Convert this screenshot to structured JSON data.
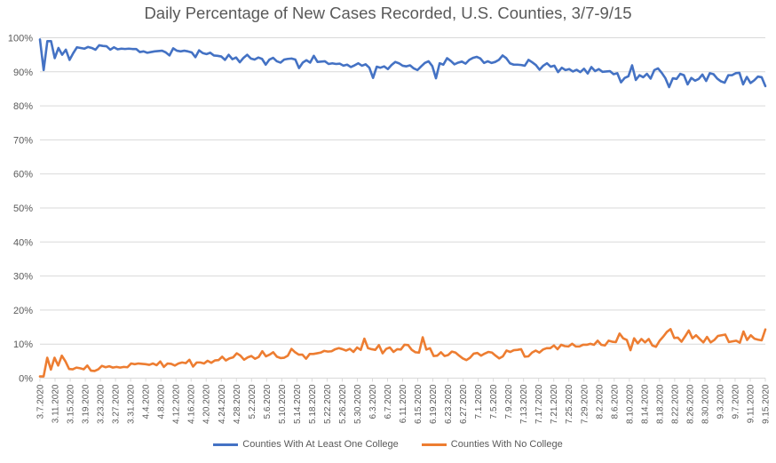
{
  "chart_data": {
    "type": "line",
    "title": "Daily Percentage of New Cases Recorded, U.S. Counties, 3/7-9/15",
    "xlabel": "",
    "ylabel": "",
    "ylim": [
      0,
      100
    ],
    "y_ticks": [
      "0%",
      "10%",
      "20%",
      "30%",
      "40%",
      "50%",
      "60%",
      "70%",
      "80%",
      "90%",
      "100%"
    ],
    "grid": "horizontal",
    "legend_position": "bottom",
    "x_tick_labels": [
      "3.7.2020",
      "3.11.2020",
      "3.15.2020",
      "3.19.2020",
      "3.23.2020",
      "3.27.2020",
      "3.31.2020",
      "4.4.2020",
      "4.8.2020",
      "4.12.2020",
      "4.16.2020",
      "4.20.2020",
      "4.24.2020",
      "4.28.2020",
      "5.2.2020",
      "5.6.2020",
      "5.10.2020",
      "5.14.2020",
      "5.18.2020",
      "5.22.2020",
      "5.26.2020",
      "5.30.2020",
      "6.3.2020",
      "6.7.2020",
      "6.11.2020",
      "6.15.2020",
      "6.19.2020",
      "6.23.2020",
      "6.27.2020",
      "7.1.2020",
      "7.5.2020",
      "7.9.2020",
      "7.13.2020",
      "7.17.2020",
      "7.21.2020",
      "7.25.2020",
      "7.29.2020",
      "8.2.2020",
      "8.6.2020",
      "8.10.2020",
      "8.14.2020",
      "8.18.2020",
      "8.22.2020",
      "8.26.2020",
      "8.30.2020",
      "9.3.2020",
      "9.7.2020",
      "9.11.2020",
      "9.15.2020"
    ],
    "x_start": "3.7.2020",
    "x_end": "9.15.2020",
    "series": [
      {
        "name": "Counties With At Least One College",
        "color": "#4472C4",
        "values": [
          99.5,
          90.5,
          99,
          99,
          94,
          97,
          95,
          96.5,
          93.5,
          95.5,
          97.2,
          97,
          96.8,
          97.3,
          97,
          96.5,
          97.8,
          97.6,
          97.5,
          96.5,
          97.2,
          96.6,
          96.8,
          96.7,
          96.8,
          96.7,
          96.7,
          95.8,
          96,
          95.6,
          95.8,
          96,
          96.1,
          96.2,
          95.7,
          94.8,
          96.9,
          96.2,
          96,
          96.2,
          96,
          95.7,
          94.3,
          96.3,
          95.5,
          95.2,
          95.6,
          94.8,
          94.7,
          94.5,
          93.5,
          95,
          93.7,
          94.2,
          92.8,
          94.1,
          95,
          93.9,
          93.6,
          94.2,
          93.8,
          92.1,
          93.6,
          94.1,
          93.1,
          92.7,
          93.6,
          93.8,
          93.9,
          93.6,
          91.1,
          92.7,
          93.4,
          92.7,
          94.7,
          92.9,
          93,
          93.1,
          92.3,
          92.5,
          92.3,
          92.4,
          91.8,
          92.1,
          91.4,
          91.9,
          92.5,
          91.8,
          92.2,
          91.2,
          88.2,
          91.5,
          91.2,
          91.6,
          90.8,
          92,
          92.9,
          92.5,
          91.8,
          91.6,
          91.9,
          91,
          90.5,
          91.6,
          92.6,
          93.1,
          91.7,
          88.1,
          92.5,
          92.1,
          94,
          93.2,
          92.2,
          92.7,
          93,
          92.4,
          93.5,
          94.1,
          94.4,
          93.9,
          92.6,
          93.1,
          92.6,
          92.9,
          93.5,
          94.8,
          94,
          92.5,
          92.1,
          92.1,
          92,
          91.8,
          93.5,
          92.8,
          92,
          90.6,
          91.8,
          92.5,
          91.5,
          91.8,
          89.9,
          91.2,
          90.5,
          90.8,
          90.1,
          90.6,
          89.9,
          90.9,
          89.5,
          91.4,
          90.2,
          90.8,
          90,
          90.1,
          90.2,
          89.3,
          89.6,
          86.9,
          88.2,
          88.7,
          91.9,
          87.6,
          89,
          88.4,
          89.4,
          88,
          90.5,
          91,
          89.7,
          88.1,
          85.5,
          88.1,
          87.9,
          89.4,
          89,
          86.3,
          88.2,
          87.4,
          87.9,
          89.2,
          87.3,
          89.6,
          89.3,
          88,
          87.2,
          86.8,
          89,
          89,
          89.6,
          89.7,
          86.3,
          88.5,
          86.7,
          87.5,
          88.6,
          88.4,
          85.8
        ]
      },
      {
        "name": "Counties With No College",
        "color": "#ED7D31",
        "values": [
          0.5,
          0.5,
          6,
          2.5,
          6,
          3.7,
          6.6,
          4.9,
          2.7,
          2.6,
          3.1,
          2.9,
          2.6,
          3.7,
          2.2,
          2.1,
          2.6,
          3.6,
          3.2,
          3.5,
          3.1,
          3.3,
          3.1,
          3.3,
          3.2,
          4.3,
          4.1,
          4.3,
          4.2,
          4.1,
          3.9,
          4.3,
          3.8,
          4.9,
          3.3,
          4.3,
          4.2,
          3.7,
          4.3,
          4.6,
          4.4,
          5.4,
          3.4,
          4.6,
          4.6,
          4.3,
          5.1,
          4.5,
          5.2,
          5.3,
          6.3,
          5.2,
          5.8,
          6.1,
          7.3,
          6.6,
          5.4,
          6.1,
          6.5,
          5.7,
          6.2,
          7.9,
          6.4,
          6.9,
          7.6,
          6.3,
          5.9,
          6,
          6.6,
          8.6,
          7.6,
          6.9,
          6.9,
          5.7,
          7.1,
          7.1,
          7.3,
          7.5,
          8,
          7.8,
          7.9,
          8.5,
          8.8,
          8.5,
          8.1,
          8.6,
          7.7,
          9,
          8.3,
          11.6,
          8.8,
          8.5,
          8.3,
          9.7,
          7.3,
          8.6,
          9,
          7.7,
          8.5,
          8.4,
          9.8,
          9.7,
          8.3,
          7.6,
          7.5,
          12,
          8.4,
          8.8,
          6.5,
          6.6,
          7.6,
          6.5,
          6.8,
          7.8,
          7.5,
          6.6,
          5.8,
          5.3,
          6,
          7.2,
          7.4,
          6.6,
          7.2,
          7.7,
          7.5,
          6.6,
          5.8,
          6.4,
          8.1,
          7.7,
          8.2,
          8.3,
          8.5,
          6.3,
          6.4,
          7.5,
          8.1,
          7.5,
          8.4,
          8.8,
          8.8,
          9.6,
          8.5,
          9.8,
          9.4,
          9.3,
          10.1,
          9.3,
          9.3,
          9.8,
          9.8,
          10.1,
          9.8,
          11,
          9.8,
          9.6,
          11,
          10.7,
          10.6,
          13.1,
          11.7,
          11.2,
          8.2,
          11.7,
          10.2,
          11.5,
          10.5,
          11.5,
          9.6,
          9.2,
          11,
          12.2,
          13.6,
          14.4,
          11.8,
          11.9,
          10.7,
          12.3,
          14,
          11.7,
          12.6,
          11.5,
          10.5,
          12.1,
          10.5,
          11.2,
          12.4,
          12.6,
          12.8,
          10.6,
          10.8,
          11,
          10.4,
          13.7,
          11.2,
          12.6,
          11.6,
          11.3,
          11.1,
          14.3
        ]
      }
    ]
  }
}
